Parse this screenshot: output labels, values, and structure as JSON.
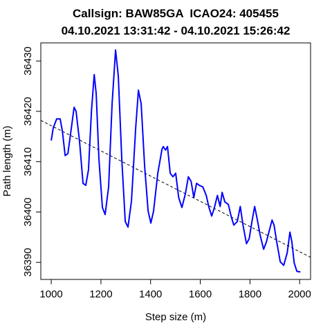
{
  "chart_data": {
    "type": "line",
    "title": [
      "Callsign: BAW85GA  ICAO24: 405455",
      "04.10.2021 13:31:42 - 04.10.2021 15:26:42"
    ],
    "xlabel": "Step size (m)",
    "ylabel": "Path length (m)",
    "xlim": [
      958,
      2044
    ],
    "ylim": [
      36386.6,
      36433.6
    ],
    "xticks": [
      1000,
      1200,
      1400,
      1600,
      1800,
      2000
    ],
    "yticks": [
      36390,
      36400,
      36410,
      36420,
      36430
    ],
    "series": [
      {
        "color": "#0000ff",
        "x": [
          1000,
          1008,
          1022,
          1036,
          1045,
          1056,
          1067,
          1081,
          1092,
          1100,
          1114,
          1128,
          1139,
          1150,
          1162,
          1173,
          1181,
          1192,
          1206,
          1217,
          1231,
          1245,
          1259,
          1270,
          1284,
          1298,
          1309,
          1323,
          1340,
          1351,
          1362,
          1376,
          1390,
          1401,
          1412,
          1429,
          1446,
          1451,
          1460,
          1468,
          1479,
          1490,
          1501,
          1513,
          1526,
          1540,
          1552,
          1563,
          1574,
          1585,
          1596,
          1610,
          1624,
          1635,
          1646,
          1657,
          1669,
          1680,
          1688,
          1699,
          1713,
          1724,
          1735,
          1749,
          1761,
          1772,
          1786,
          1797,
          1808,
          1819,
          1830,
          1841,
          1855,
          1866,
          1880,
          1889,
          1897,
          1908,
          1922,
          1936,
          1950,
          1961,
          1969,
          1978,
          1989,
          2003
        ],
        "values": [
          36414.2,
          36416.7,
          36418.5,
          36418.5,
          36416,
          36411.2,
          36411.6,
          36416.7,
          36420.8,
          36420,
          36414,
          36405.7,
          36405.3,
          36408.4,
          36420.1,
          36427.3,
          36423.5,
          36410.5,
          36400.9,
          36399.5,
          36405,
          36421.5,
          36432.2,
          36427,
          36410.5,
          36398.1,
          36397,
          36402.2,
          36416.7,
          36424.2,
          36421.5,
          36409.1,
          36400.2,
          36397.8,
          36400.2,
          36407.7,
          36412.5,
          36413,
          36412.3,
          36413,
          36407.7,
          36407,
          36407.7,
          36402.9,
          36400.9,
          36403.6,
          36407,
          36406.1,
          36402.9,
          36405.7,
          36405.3,
          36405,
          36403.3,
          36400.9,
          36399.2,
          36400.9,
          36403.3,
          36401.1,
          36403.9,
          36402,
          36401.5,
          36399.2,
          36397.4,
          36398.1,
          36401.1,
          36397.4,
          36393.7,
          36394.7,
          36398.1,
          36401.1,
          36398.4,
          36395.4,
          36392.6,
          36394,
          36396.7,
          36398.4,
          36397.4,
          36394,
          36390.1,
          36389.4,
          36391.9,
          36396,
          36394,
          36389.9,
          36388.2,
          36388.1
        ]
      }
    ],
    "trendline": {
      "x": [
        958,
        2044
      ],
      "values": [
        36418.2,
        36391.0
      ],
      "color": "#000000"
    }
  }
}
